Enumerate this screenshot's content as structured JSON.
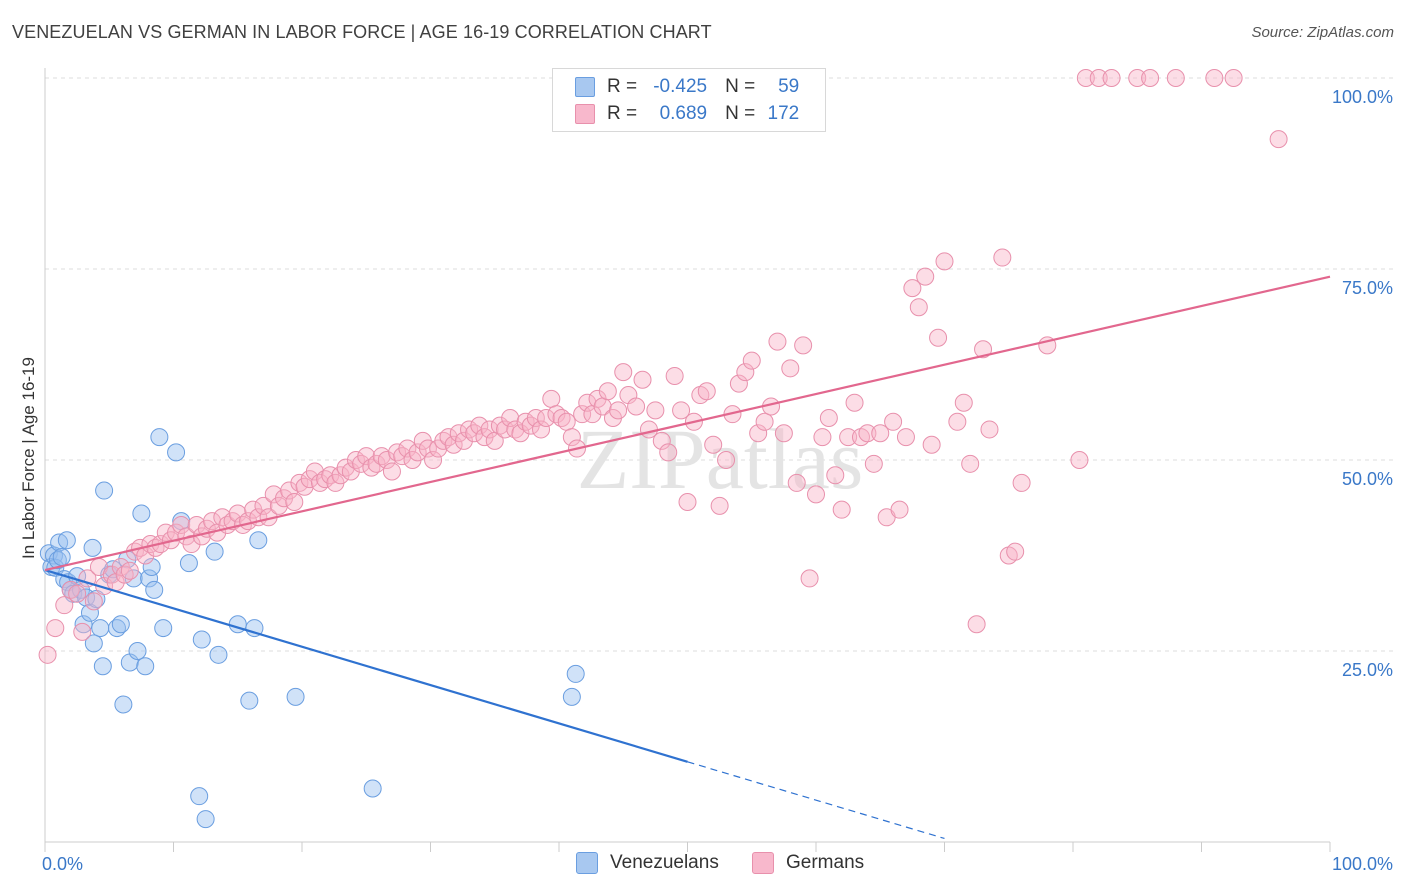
{
  "title": "VENEZUELAN VS GERMAN IN LABOR FORCE | AGE 16-19 CORRELATION CHART",
  "source": "Source: ZipAtlas.com",
  "legend": {
    "r_label": "R =",
    "n_label": "N =",
    "rows": [
      {
        "r": "-0.425",
        "n": "59",
        "color": "#a8c8f0",
        "border": "#6a9ee0"
      },
      {
        "r": "0.689",
        "n": "172",
        "color": "#f8b8cc",
        "border": "#e890ac"
      }
    ]
  },
  "bottom_legend": {
    "items": [
      {
        "label": "Venezuelans",
        "color": "#a8c8f0",
        "border": "#6a9ee0"
      },
      {
        "label": "Germans",
        "color": "#f8b8cc",
        "border": "#e890ac"
      }
    ]
  },
  "watermark": "ZIPatlas",
  "chart_data": {
    "type": "scatter",
    "title": "VENEZUELAN VS GERMAN IN LABOR FORCE | AGE 16-19 CORRELATION CHART",
    "xlabel": "",
    "ylabel": "In Labor Force | Age 16-19",
    "xlim": [
      0,
      100
    ],
    "ylim": [
      0,
      100
    ],
    "x_tick_labels": [
      "0.0%",
      "100.0%"
    ],
    "y_tick_labels": [
      "25.0%",
      "50.0%",
      "75.0%",
      "100.0%"
    ],
    "y_tick_values": [
      25,
      50,
      75,
      100
    ],
    "grid": "horizontal-dashed",
    "series": [
      {
        "name": "Venezuelans",
        "color": "#6a9ee0",
        "fill": "rgba(150,190,240,0.45)",
        "trend": {
          "x0": 0,
          "y0": 35.6,
          "x1": 50,
          "y1": 10.5,
          "dash_to_x": 70
        },
        "points": [
          [
            0.3,
            37.8
          ],
          [
            0.5,
            36.0
          ],
          [
            0.7,
            37.5
          ],
          [
            0.8,
            35.9
          ],
          [
            1.0,
            36.9
          ],
          [
            1.1,
            39.2
          ],
          [
            1.3,
            37.3
          ],
          [
            1.5,
            34.4
          ],
          [
            1.7,
            39.5
          ],
          [
            1.8,
            34.0
          ],
          [
            2.0,
            33.0
          ],
          [
            2.2,
            32.5
          ],
          [
            2.5,
            34.8
          ],
          [
            2.8,
            33.0
          ],
          [
            3.0,
            28.5
          ],
          [
            3.2,
            32.0
          ],
          [
            3.5,
            30.0
          ],
          [
            3.7,
            38.5
          ],
          [
            3.8,
            26.0
          ],
          [
            4.0,
            31.8
          ],
          [
            4.3,
            28.0
          ],
          [
            4.5,
            23.0
          ],
          [
            4.6,
            46.0
          ],
          [
            5.0,
            35.0
          ],
          [
            5.3,
            35.7
          ],
          [
            5.6,
            28.0
          ],
          [
            5.9,
            28.5
          ],
          [
            6.1,
            18.0
          ],
          [
            6.4,
            37.0
          ],
          [
            6.6,
            23.5
          ],
          [
            6.9,
            34.5
          ],
          [
            7.2,
            25.0
          ],
          [
            7.5,
            43.0
          ],
          [
            7.8,
            23.0
          ],
          [
            8.1,
            34.5
          ],
          [
            8.3,
            36.0
          ],
          [
            8.5,
            33.0
          ],
          [
            8.9,
            53.0
          ],
          [
            9.2,
            28.0
          ],
          [
            10.2,
            51.0
          ],
          [
            10.6,
            42.0
          ],
          [
            11.2,
            36.5
          ],
          [
            12.0,
            6.0
          ],
          [
            12.2,
            26.5
          ],
          [
            12.5,
            3.0
          ],
          [
            13.2,
            38.0
          ],
          [
            13.5,
            24.5
          ],
          [
            15.0,
            28.5
          ],
          [
            15.9,
            18.5
          ],
          [
            16.3,
            28.0
          ],
          [
            16.6,
            39.5
          ],
          [
            19.5,
            19.0
          ],
          [
            25.5,
            7.0
          ],
          [
            41.0,
            19.0
          ],
          [
            41.3,
            22.0
          ]
        ]
      },
      {
        "name": "Germans",
        "color": "#e890ac",
        "fill": "rgba(248,180,200,0.45)",
        "trend": {
          "x0": 0,
          "y0": 35.6,
          "x1": 100,
          "y1": 74.0
        },
        "points": [
          [
            0.2,
            24.5
          ],
          [
            0.8,
            28.0
          ],
          [
            1.5,
            31.0
          ],
          [
            2.0,
            33.0
          ],
          [
            2.5,
            32.5
          ],
          [
            2.9,
            27.5
          ],
          [
            3.3,
            34.5
          ],
          [
            3.8,
            31.5
          ],
          [
            4.2,
            36.0
          ],
          [
            4.6,
            33.5
          ],
          [
            5.2,
            35.0
          ],
          [
            5.5,
            34.0
          ],
          [
            5.9,
            36.0
          ],
          [
            6.2,
            35.0
          ],
          [
            6.6,
            35.5
          ],
          [
            7.0,
            38.0
          ],
          [
            7.4,
            38.5
          ],
          [
            7.8,
            37.5
          ],
          [
            8.2,
            39.0
          ],
          [
            8.6,
            38.5
          ],
          [
            9.0,
            39.0
          ],
          [
            9.4,
            40.5
          ],
          [
            9.8,
            39.5
          ],
          [
            10.2,
            40.5
          ],
          [
            10.6,
            41.5
          ],
          [
            11.0,
            40.0
          ],
          [
            11.4,
            39.0
          ],
          [
            11.8,
            41.5
          ],
          [
            12.2,
            40.0
          ],
          [
            12.6,
            41.0
          ],
          [
            13.0,
            42.0
          ],
          [
            13.4,
            40.5
          ],
          [
            13.8,
            42.5
          ],
          [
            14.2,
            41.5
          ],
          [
            14.6,
            42.0
          ],
          [
            15.0,
            43.0
          ],
          [
            15.4,
            41.5
          ],
          [
            15.8,
            42.0
          ],
          [
            16.2,
            43.5
          ],
          [
            16.6,
            42.5
          ],
          [
            17.0,
            44.0
          ],
          [
            17.4,
            42.5
          ],
          [
            17.8,
            45.5
          ],
          [
            18.2,
            44.0
          ],
          [
            18.6,
            45.0
          ],
          [
            19.0,
            46.0
          ],
          [
            19.4,
            44.5
          ],
          [
            19.8,
            47.0
          ],
          [
            20.2,
            46.5
          ],
          [
            20.6,
            47.5
          ],
          [
            21.0,
            48.5
          ],
          [
            21.4,
            47.0
          ],
          [
            21.8,
            47.5
          ],
          [
            22.2,
            48.0
          ],
          [
            22.6,
            47.0
          ],
          [
            23.0,
            48.0
          ],
          [
            23.4,
            49.0
          ],
          [
            23.8,
            48.5
          ],
          [
            24.2,
            50.0
          ],
          [
            24.6,
            49.5
          ],
          [
            25.0,
            50.5
          ],
          [
            25.4,
            49.0
          ],
          [
            25.8,
            49.5
          ],
          [
            26.2,
            50.5
          ],
          [
            26.6,
            50.0
          ],
          [
            27.0,
            48.5
          ],
          [
            27.4,
            51.0
          ],
          [
            27.8,
            50.5
          ],
          [
            28.2,
            51.5
          ],
          [
            28.6,
            50.0
          ],
          [
            29.0,
            51.0
          ],
          [
            29.4,
            52.5
          ],
          [
            29.8,
            51.5
          ],
          [
            30.2,
            50.0
          ],
          [
            30.6,
            51.5
          ],
          [
            31.0,
            52.5
          ],
          [
            31.4,
            53.0
          ],
          [
            31.8,
            52.0
          ],
          [
            32.2,
            53.5
          ],
          [
            32.6,
            52.5
          ],
          [
            33.0,
            54.0
          ],
          [
            33.4,
            53.5
          ],
          [
            33.8,
            54.5
          ],
          [
            34.2,
            53.0
          ],
          [
            34.6,
            54.0
          ],
          [
            35.0,
            52.5
          ],
          [
            35.4,
            54.5
          ],
          [
            35.8,
            54.0
          ],
          [
            36.2,
            55.5
          ],
          [
            36.6,
            54.0
          ],
          [
            37.0,
            53.5
          ],
          [
            37.4,
            55.0
          ],
          [
            37.8,
            54.5
          ],
          [
            38.2,
            55.5
          ],
          [
            38.6,
            54.0
          ],
          [
            39.0,
            55.5
          ],
          [
            39.4,
            58.0
          ],
          [
            39.8,
            56.0
          ],
          [
            40.2,
            55.5
          ],
          [
            40.6,
            55.0
          ],
          [
            41.0,
            53.0
          ],
          [
            41.4,
            51.5
          ],
          [
            41.8,
            56.0
          ],
          [
            42.2,
            57.5
          ],
          [
            42.6,
            56.0
          ],
          [
            43.0,
            58.0
          ],
          [
            43.4,
            57.0
          ],
          [
            43.8,
            59.0
          ],
          [
            44.2,
            55.5
          ],
          [
            44.6,
            56.5
          ],
          [
            45.0,
            61.5
          ],
          [
            45.4,
            58.5
          ],
          [
            46.0,
            57.0
          ],
          [
            46.5,
            60.5
          ],
          [
            47.0,
            54.0
          ],
          [
            47.5,
            56.5
          ],
          [
            48.0,
            52.5
          ],
          [
            48.5,
            51.0
          ],
          [
            49.0,
            61.0
          ],
          [
            49.5,
            56.5
          ],
          [
            50.0,
            44.5
          ],
          [
            50.5,
            55.0
          ],
          [
            51.0,
            58.5
          ],
          [
            51.5,
            59.0
          ],
          [
            52.0,
            52.0
          ],
          [
            52.5,
            44.0
          ],
          [
            53.0,
            50.0
          ],
          [
            53.5,
            56.0
          ],
          [
            54.0,
            60.0
          ],
          [
            54.5,
            61.5
          ],
          [
            55.0,
            63.0
          ],
          [
            55.5,
            53.5
          ],
          [
            56.0,
            55.0
          ],
          [
            56.5,
            57.0
          ],
          [
            57.0,
            65.5
          ],
          [
            57.5,
            53.5
          ],
          [
            58.0,
            62.0
          ],
          [
            58.5,
            47.0
          ],
          [
            59.0,
            65.0
          ],
          [
            59.5,
            34.5
          ],
          [
            60.0,
            45.5
          ],
          [
            60.5,
            53.0
          ],
          [
            61.0,
            55.5
          ],
          [
            61.5,
            48.0
          ],
          [
            62.0,
            43.5
          ],
          [
            62.5,
            53.0
          ],
          [
            63.0,
            57.5
          ],
          [
            63.5,
            53.0
          ],
          [
            64.0,
            53.5
          ],
          [
            64.5,
            49.5
          ],
          [
            65.0,
            53.5
          ],
          [
            65.5,
            42.5
          ],
          [
            66.0,
            55.0
          ],
          [
            66.5,
            43.5
          ],
          [
            67.0,
            53.0
          ],
          [
            67.5,
            72.5
          ],
          [
            68.0,
            70.0
          ],
          [
            68.5,
            74.0
          ],
          [
            69.0,
            52.0
          ],
          [
            69.5,
            66.0
          ],
          [
            70.0,
            76.0
          ],
          [
            71.0,
            55.0
          ],
          [
            71.5,
            57.5
          ],
          [
            72.0,
            49.5
          ],
          [
            72.5,
            28.5
          ],
          [
            73.0,
            64.5
          ],
          [
            73.5,
            54.0
          ],
          [
            74.5,
            76.5
          ],
          [
            75.0,
            37.5
          ],
          [
            75.5,
            38.0
          ],
          [
            76.0,
            47.0
          ],
          [
            78.0,
            65.0
          ],
          [
            80.5,
            50.0
          ],
          [
            81.0,
            100.0
          ],
          [
            82.0,
            100.0
          ],
          [
            83.0,
            100.0
          ],
          [
            85.0,
            100.0
          ],
          [
            86.0,
            100.0
          ],
          [
            88.0,
            100.0
          ],
          [
            91.0,
            100.0
          ],
          [
            92.5,
            100.0
          ],
          [
            96.0,
            92.0
          ]
        ]
      }
    ]
  }
}
